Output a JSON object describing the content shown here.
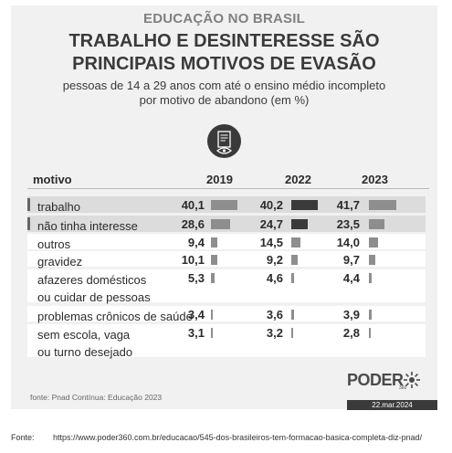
{
  "header": {
    "kicker": "EDUCAÇÃO NO BRASIL",
    "title_line1": "TRABALHO E DESINTERESSE SÃO",
    "title_line2": "PRINCIPAIS MOTIVOS DE EVASÃO",
    "subtitle_line1": "pessoas de 14 a 29 anos com até o ensino médio incompleto",
    "subtitle_line2": "por motivo de abandono (em %)",
    "icon": "document-eye-icon"
  },
  "chart_data": {
    "type": "table",
    "column_header": "motivo",
    "years": [
      "2019",
      "2022",
      "2023"
    ],
    "rows": [
      {
        "label_line1": "trabalho",
        "label_line2": "",
        "values": [
          "40,1",
          "40,2",
          "41,7"
        ],
        "numeric": [
          40.1,
          40.2,
          41.7
        ],
        "highlight": true
      },
      {
        "label_line1": "não tinha interesse",
        "label_line2": "",
        "values": [
          "28,6",
          "24,7",
          "23,5"
        ],
        "numeric": [
          28.6,
          24.7,
          23.5
        ],
        "highlight": true
      },
      {
        "label_line1": "outros",
        "label_line2": "",
        "values": [
          "9,4",
          "14,5",
          "14,0"
        ],
        "numeric": [
          9.4,
          14.5,
          14.0
        ],
        "highlight": false
      },
      {
        "label_line1": "gravidez",
        "label_line2": "",
        "values": [
          "10,1",
          "9,2",
          "9,7"
        ],
        "numeric": [
          10.1,
          9.2,
          9.7
        ],
        "highlight": false
      },
      {
        "label_line1": "afazeres domésticos",
        "label_line2": "ou cuidar de pessoas",
        "values": [
          "5,3",
          "4,6",
          "4,4"
        ],
        "numeric": [
          5.3,
          4.6,
          4.4
        ],
        "highlight": false
      },
      {
        "label_line1": "problemas crônicos de saúde",
        "label_line2": "",
        "values": [
          "3,4",
          "3,6",
          "3,9"
        ],
        "numeric": [
          3.4,
          3.6,
          3.9
        ],
        "highlight": false
      },
      {
        "label_line1": "sem escola, vaga",
        "label_line2": "ou turno desejado",
        "values": [
          "3,1",
          "3,2",
          "2,8"
        ],
        "numeric": [
          3.1,
          3.2,
          2.8
        ],
        "highlight": false
      }
    ],
    "colors": {
      "bar": "#8e8e8e",
      "bar_highlight_2022": "#3a3a3a",
      "row_shade": "#dcdcdc",
      "background": "#f1f1f1"
    }
  },
  "source": "fonte: Pnad Contínua: Educação 2023",
  "brand": {
    "name": "PODER",
    "number": "360",
    "date": "22.mar.2024"
  },
  "footer": {
    "label": "Fonte:",
    "url": "https://www.poder360.com.br/educacao/545-dos-brasileiros-tem-formacao-basica-completa-diz-pnad/"
  }
}
